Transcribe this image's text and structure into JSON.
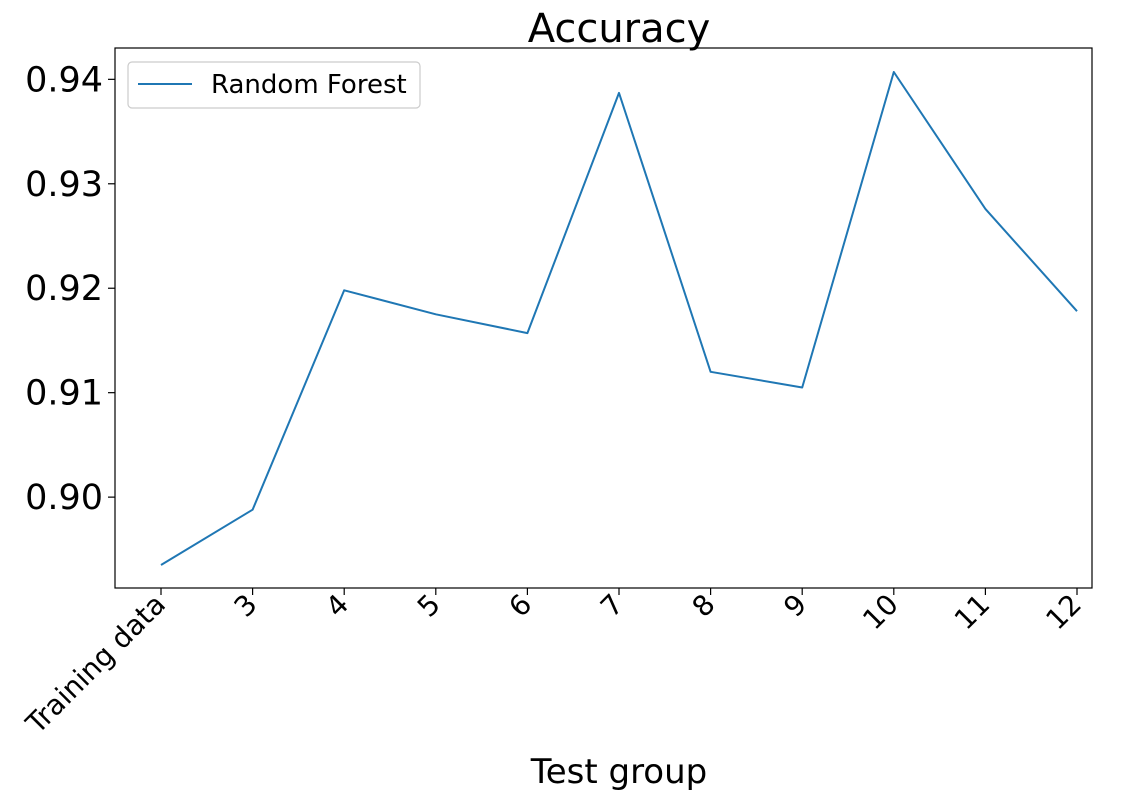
{
  "chart_data": {
    "type": "line",
    "title": "Accuracy",
    "xlabel": "Test group",
    "ylabel": "",
    "categories": [
      "Training data",
      "3",
      "4",
      "5",
      "6",
      "7",
      "8",
      "9",
      "10",
      "11",
      "12"
    ],
    "series": [
      {
        "name": "Random Forest",
        "color": "#1f77b4",
        "values": [
          0.8935,
          0.8988,
          0.9198,
          0.9175,
          0.9157,
          0.9387,
          0.912,
          0.9105,
          0.9407,
          0.9276,
          0.9178
        ]
      }
    ],
    "ylim": [
      0.8913,
      0.943
    ],
    "yticks": [
      "0.90",
      "0.91",
      "0.92",
      "0.93",
      "0.94"
    ],
    "ytick_values": [
      0.9,
      0.91,
      0.92,
      0.93,
      0.94
    ],
    "grid": false,
    "legend_position": "upper left"
  }
}
